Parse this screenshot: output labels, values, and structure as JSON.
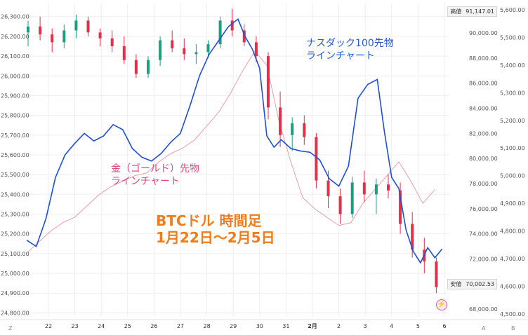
{
  "chart_data": {
    "type": "candlestick_with_lines",
    "x_ticks": [
      "22",
      "23",
      "24",
      "25",
      "26",
      "27",
      "28",
      "29",
      "30",
      "31",
      "2月",
      "2",
      "3",
      "4",
      "5",
      "6"
    ],
    "left_axis": {
      "ticks": [
        "26,300.00",
        "26,200.00",
        "26,100.00",
        "26,000.00",
        "25,900.00",
        "25,800.00",
        "25,700.00",
        "25,600.00",
        "25,500.00",
        "25,400.00",
        "25,300.00",
        "25,200.00",
        "25,100.00",
        "25,000.00",
        "24,900.00",
        "24,800.00"
      ],
      "range": [
        24780,
        26370
      ]
    },
    "mid_axis": {
      "ticks": [
        "90,000.00",
        "88,000.00",
        "86,000.00",
        "84,000.00",
        "82,000.00",
        "80,000.00",
        "78,000.00",
        "76,000.00",
        "74,000.00",
        "72,000.00",
        "70,000.00",
        "68,000.00"
      ],
      "range": [
        67400,
        92400
      ]
    },
    "right_axis": {
      "ticks": [
        "5,600.00",
        "5,500.00",
        "5,400.00",
        "5,300.00",
        "5,200.00",
        "5,100.00",
        "5,000.00",
        "4,900.00",
        "4,800.00",
        "4,700.00",
        "4,600.00",
        "4,500.00"
      ],
      "range": [
        4490,
        5625
      ]
    },
    "btc_candles": [
      [
        0,
        26220,
        26280,
        26150,
        26250
      ],
      [
        1,
        26250,
        26300,
        26180,
        26210
      ],
      [
        2,
        26210,
        26240,
        26120,
        26170
      ],
      [
        3,
        26170,
        26260,
        26140,
        26230
      ],
      [
        4,
        26230,
        26310,
        26190,
        26280
      ],
      [
        5,
        26280,
        26300,
        26200,
        26220
      ],
      [
        6,
        26220,
        26240,
        26150,
        26190
      ],
      [
        7,
        26190,
        26230,
        26120,
        26150
      ],
      [
        8,
        26150,
        26200,
        26060,
        26080
      ],
      [
        9,
        26080,
        26110,
        25990,
        26010
      ],
      [
        10,
        26010,
        26100,
        25990,
        26080
      ],
      [
        11,
        26080,
        26200,
        26050,
        26180
      ],
      [
        12,
        26180,
        26230,
        26120,
        26140
      ],
      [
        13,
        26140,
        26190,
        26080,
        26110
      ],
      [
        14,
        26110,
        26160,
        26060,
        26120
      ],
      [
        15,
        26120,
        26180,
        26090,
        26160
      ],
      [
        16,
        26160,
        26300,
        26140,
        26280
      ],
      [
        17,
        26280,
        26340,
        26200,
        26230
      ],
      [
        18,
        26230,
        26260,
        26150,
        26170
      ],
      [
        19,
        26170,
        26200,
        26070,
        26100
      ],
      [
        20,
        26100,
        26120,
        25780,
        25840
      ],
      [
        21,
        25840,
        25920,
        25640,
        25700
      ],
      [
        22,
        25700,
        25790,
        25620,
        25760
      ],
      [
        23,
        25760,
        25800,
        25650,
        25690
      ],
      [
        24,
        25690,
        25710,
        25430,
        25470
      ],
      [
        25,
        25470,
        25520,
        25330,
        25390
      ],
      [
        26,
        25390,
        25430,
        25250,
        25300
      ],
      [
        27,
        25300,
        25490,
        25280,
        25460
      ],
      [
        28,
        25460,
        25520,
        25360,
        25400
      ],
      [
        29,
        25400,
        25480,
        25300,
        25450
      ],
      [
        30,
        25450,
        25500,
        25380,
        25420
      ],
      [
        31,
        25420,
        25460,
        25200,
        25250
      ],
      [
        32,
        25250,
        25310,
        25080,
        25120
      ],
      [
        33,
        25120,
        25180,
        25000,
        25060
      ],
      [
        34,
        25060,
        25080,
        24900,
        24930
      ]
    ],
    "nasdaq_line": [
      [
        0,
        73500
      ],
      [
        0.4,
        73000
      ],
      [
        0.8,
        75200
      ],
      [
        1.2,
        78500
      ],
      [
        1.6,
        80300
      ],
      [
        2.0,
        81200
      ],
      [
        2.4,
        82000
      ],
      [
        2.8,
        81400
      ],
      [
        3.2,
        81800
      ],
      [
        3.6,
        82700
      ],
      [
        4.0,
        82300
      ],
      [
        4.4,
        80800
      ],
      [
        4.8,
        80100
      ],
      [
        5.2,
        79800
      ],
      [
        5.6,
        80400
      ],
      [
        6.0,
        81300
      ],
      [
        6.4,
        82000
      ],
      [
        6.8,
        84200
      ],
      [
        7.2,
        86600
      ],
      [
        7.6,
        88300
      ],
      [
        8.0,
        89400
      ],
      [
        8.4,
        90500
      ],
      [
        8.8,
        91100
      ],
      [
        9.1,
        89700
      ],
      [
        9.4,
        88700
      ],
      [
        9.7,
        87200
      ],
      [
        10.0,
        81800
      ],
      [
        10.3,
        80900
      ],
      [
        10.6,
        81500
      ],
      [
        11.0,
        80800
      ],
      [
        11.4,
        80600
      ],
      [
        11.8,
        80500
      ],
      [
        12.2,
        79900
      ],
      [
        12.6,
        78400
      ],
      [
        13.0,
        77800
      ],
      [
        13.4,
        79400
      ],
      [
        13.8,
        84800
      ],
      [
        14.2,
        85900
      ],
      [
        14.6,
        86300
      ],
      [
        14.9,
        82100
      ],
      [
        15.2,
        78500
      ],
      [
        15.5,
        77600
      ],
      [
        15.8,
        74300
      ],
      [
        16.1,
        72600
      ],
      [
        16.4,
        71700
      ],
      [
        16.7,
        72900
      ],
      [
        17.0,
        72100
      ],
      [
        17.3,
        72800
      ]
    ],
    "gold_line": [
      [
        0,
        4720
      ],
      [
        0.5,
        4760
      ],
      [
        1.0,
        4800
      ],
      [
        1.5,
        4830
      ],
      [
        2.0,
        4850
      ],
      [
        2.5,
        4890
      ],
      [
        3.0,
        4930
      ],
      [
        3.5,
        4960
      ],
      [
        4.0,
        4980
      ],
      [
        4.5,
        5000
      ],
      [
        5.0,
        5010
      ],
      [
        5.5,
        5050
      ],
      [
        6.0,
        5080
      ],
      [
        6.5,
        5100
      ],
      [
        7.0,
        5130
      ],
      [
        7.5,
        5180
      ],
      [
        8.0,
        5230
      ],
      [
        8.5,
        5300
      ],
      [
        9.0,
        5380
      ],
      [
        9.5,
        5450
      ],
      [
        10.0,
        5400
      ],
      [
        10.5,
        5200
      ],
      [
        11.0,
        5050
      ],
      [
        11.5,
        4920
      ],
      [
        12.0,
        4880
      ],
      [
        12.5,
        4850
      ],
      [
        13.0,
        4820
      ],
      [
        13.5,
        4830
      ],
      [
        14.0,
        4900
      ],
      [
        14.5,
        4950
      ],
      [
        15.0,
        5000
      ],
      [
        15.5,
        5050
      ],
      [
        16.0,
        4980
      ],
      [
        16.5,
        4900
      ],
      [
        17.0,
        4950
      ]
    ],
    "price_high": {
      "label": "高値",
      "value": "91,147.01"
    },
    "price_low": {
      "label": "安値",
      "value": "70,002.53"
    },
    "annotations": {
      "nasdaq": [
        "ナスダック100先物",
        "ラインチャート"
      ],
      "gold": [
        "金（ゴールド）先物",
        "ラインチャート"
      ],
      "btc": [
        "BTCドル 時間足",
        "1月22日〜2月5日"
      ]
    },
    "colors": {
      "up": "#1e9e80",
      "down": "#e0304a",
      "nasdaq": "#1f4fd6",
      "gold": "#e8a0a8",
      "grid": "#eeeeee"
    },
    "grid": true,
    "bottom_letters": [
      "Z",
      "A",
      "B"
    ]
  }
}
